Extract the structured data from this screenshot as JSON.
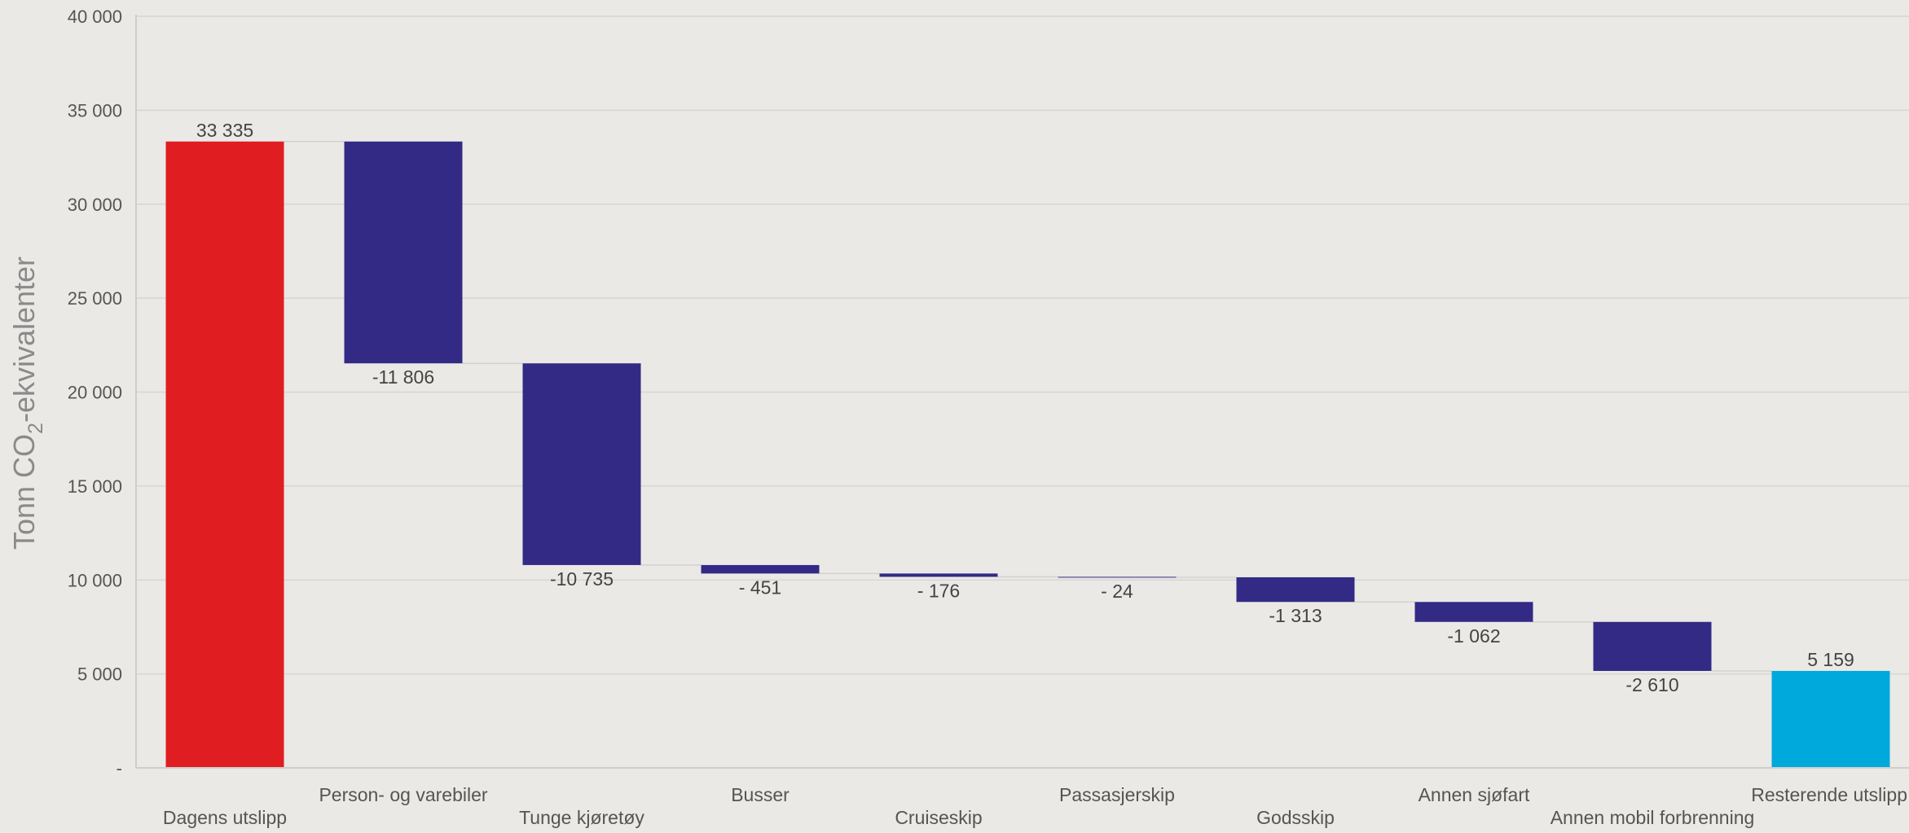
{
  "chart_data": {
    "type": "bar",
    "subtype": "waterfall",
    "ylabel_prefix": "Tonn CO",
    "ylabel_sub": "2",
    "ylabel_suffix": "-ekvivalenter",
    "ylim": [
      0,
      40000
    ],
    "y_ticks": [
      0,
      5000,
      10000,
      15000,
      20000,
      25000,
      30000,
      35000,
      40000
    ],
    "y_tick_labels": [
      "-",
      "5 000",
      "10 000",
      "15 000",
      "20 000",
      "25 000",
      "30 000",
      "35 000",
      "40 000"
    ],
    "grid": true,
    "categories": [
      "Dagens utslipp",
      "Person- og varebiler",
      "Tunge kjøretøy",
      "Busser",
      "Cruiseskip",
      "Passasjerskip",
      "Godsskip",
      "Annen sjøfart",
      "Annen mobil forbrenning",
      "Resterende utslipp"
    ],
    "values": [
      33335,
      -11806,
      -10735,
      -451,
      -176,
      -24,
      -1313,
      -1062,
      -2610,
      5159
    ],
    "bar_kinds": [
      "total",
      "delta",
      "delta",
      "delta",
      "delta",
      "delta",
      "delta",
      "delta",
      "delta",
      "total"
    ],
    "data_labels": [
      "33 335",
      "-11 806",
      "-10 735",
      "- 451",
      "- 176",
      "- 24",
      "-1 313",
      "-1 062",
      "-2 610",
      "5 159"
    ],
    "colors": {
      "start_total": "#E01E22",
      "decrease": "#332A85",
      "end_total": "#00A9DC"
    }
  }
}
